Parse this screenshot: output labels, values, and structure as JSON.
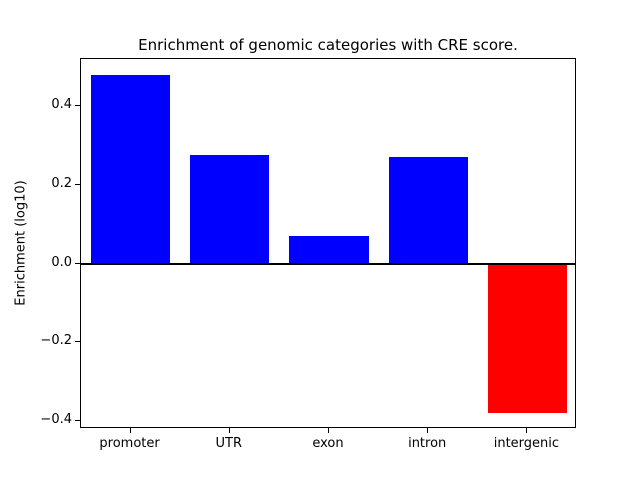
{
  "chart_data": {
    "type": "bar",
    "title": "Enrichment of genomic categories with CRE score.",
    "xlabel": "",
    "ylabel": "Enrichment (log10)",
    "categories": [
      "promoter",
      "UTR",
      "exon",
      "intron",
      "intergenic"
    ],
    "values": [
      0.48,
      0.275,
      0.07,
      0.27,
      -0.38
    ],
    "positive_color": "#0000ff",
    "negative_color": "#ff0000",
    "ylim": [
      -0.42,
      0.52
    ],
    "yticks": [
      -0.4,
      -0.2,
      0.0,
      0.2,
      0.4
    ],
    "grid": false,
    "legend": false,
    "zero_line": true,
    "bar_width_fraction": 0.8
  }
}
